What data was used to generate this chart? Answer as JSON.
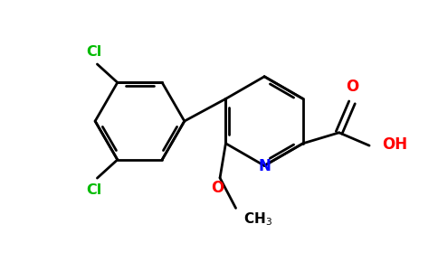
{
  "background_color": "#ffffff",
  "bond_color": "#000000",
  "cl_color": "#00bb00",
  "n_color": "#0000ff",
  "o_color": "#ff0000",
  "line_width": 2.0,
  "figsize": [
    4.84,
    3.0
  ],
  "dpi": 100,
  "xlim": [
    -0.3,
    4.8
  ],
  "ylim": [
    -1.5,
    2.2
  ]
}
